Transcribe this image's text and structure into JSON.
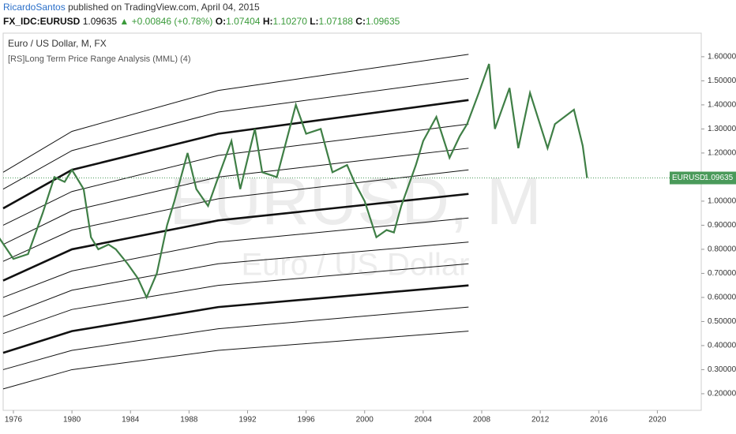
{
  "header": {
    "author": "RicardoSantos",
    "published": "published on TradingView.com, April 04, 2015",
    "symbol": "FX_IDC:EURUSD",
    "price": "1.09635",
    "change": "▲ +0.00846 (+0.78%)",
    "o_label": "O:",
    "o_value": "1.07404",
    "h_label": "H:",
    "h_value": "1.10270",
    "l_label": "L:",
    "l_value": "1.07188",
    "c_label": "C:",
    "c_value": "1.09635"
  },
  "chart_data": {
    "type": "line",
    "legend_title": "Euro / US Dollar, M, FX",
    "indicator": "[RS]Long Term Price Range Analysis (MML) (4)",
    "watermark": "EURUSD, M",
    "watermark_sub": "Euro / US Dollar",
    "color": "#3f7f46",
    "x": [
      1975.0,
      1976.0,
      1977.0,
      1978.0,
      1978.8,
      1979.5,
      1980.0,
      1980.8,
      1981.3,
      1981.8,
      1982.5,
      1983.0,
      1983.8,
      1984.5,
      1985.1,
      1985.8,
      1986.5,
      1987.0,
      1987.9,
      1988.5,
      1989.3,
      1990.0,
      1990.9,
      1991.5,
      1992.5,
      1993.0,
      1994.0,
      1995.3,
      1996.0,
      1997.0,
      1997.8,
      1998.8,
      1999.3,
      2000.0,
      2000.8,
      2001.5,
      2002.0,
      2002.5,
      2003.5,
      2004.0,
      2004.9,
      2005.8,
      2006.5,
      2007.0,
      2007.8,
      2008.5,
      2008.9,
      2009.9,
      2010.5,
      2011.3,
      2012.5,
      2013.0,
      2014.3,
      2014.9,
      2015.2
    ],
    "values": [
      0.85,
      0.76,
      0.78,
      0.95,
      1.1,
      1.08,
      1.13,
      1.05,
      0.85,
      0.8,
      0.82,
      0.8,
      0.74,
      0.68,
      0.6,
      0.7,
      0.9,
      1.0,
      1.2,
      1.05,
      0.98,
      1.1,
      1.25,
      1.05,
      1.3,
      1.12,
      1.1,
      1.4,
      1.28,
      1.3,
      1.12,
      1.15,
      1.08,
      1.0,
      0.85,
      0.88,
      0.87,
      0.98,
      1.15,
      1.25,
      1.35,
      1.18,
      1.27,
      1.32,
      1.45,
      1.57,
      1.3,
      1.47,
      1.22,
      1.45,
      1.22,
      1.32,
      1.38,
      1.23,
      1.09635
    ],
    "mml_x": [
      1975.3,
      1980,
      1990,
      2007.1
    ],
    "mml_lines": [
      {
        "bold": false,
        "values": [
          1.12,
          1.29,
          1.46,
          1.61
        ]
      },
      {
        "bold": false,
        "values": [
          1.05,
          1.21,
          1.37,
          1.51
        ]
      },
      {
        "bold": true,
        "values": [
          0.97,
          1.13,
          1.28,
          1.42
        ]
      },
      {
        "bold": false,
        "values": [
          0.9,
          1.04,
          1.19,
          1.32
        ]
      },
      {
        "bold": false,
        "values": [
          0.82,
          0.96,
          1.1,
          1.22
        ]
      },
      {
        "bold": false,
        "values": [
          0.75,
          0.88,
          1.01,
          1.13
        ]
      },
      {
        "bold": true,
        "values": [
          0.67,
          0.8,
          0.92,
          1.03
        ]
      },
      {
        "bold": false,
        "values": [
          0.6,
          0.71,
          0.83,
          0.93
        ]
      },
      {
        "bold": false,
        "values": [
          0.52,
          0.63,
          0.74,
          0.83
        ]
      },
      {
        "bold": false,
        "values": [
          0.45,
          0.55,
          0.65,
          0.74
        ]
      },
      {
        "bold": true,
        "values": [
          0.37,
          0.46,
          0.56,
          0.65
        ]
      },
      {
        "bold": false,
        "values": [
          0.3,
          0.38,
          0.47,
          0.56
        ]
      },
      {
        "bold": false,
        "values": [
          0.22,
          0.3,
          0.38,
          0.46
        ]
      }
    ],
    "xlim": [
      1975.3,
      2023.0
    ],
    "ylim": [
      0.131,
      1.698
    ],
    "xticks": [
      1976,
      1980,
      1984,
      1988,
      1992,
      1996,
      2000,
      2004,
      2008,
      2012,
      2016,
      2020
    ],
    "yticks": [
      {
        "value": 0.2,
        "label": "0.20000"
      },
      {
        "value": 0.3,
        "label": "0.30000"
      },
      {
        "value": 0.4,
        "label": "0.40000"
      },
      {
        "value": 0.5,
        "label": "0.50000"
      },
      {
        "value": 0.6,
        "label": "0.60000"
      },
      {
        "value": 0.7,
        "label": "0.70000"
      },
      {
        "value": 0.8,
        "label": "0.80000"
      },
      {
        "value": 0.9,
        "label": "0.90000"
      },
      {
        "value": 1.0,
        "label": "1.00000"
      },
      {
        "value": 1.1,
        "label": "1.10000"
      },
      {
        "value": 1.2,
        "label": "1.20000"
      },
      {
        "value": 1.3,
        "label": "1.30000"
      },
      {
        "value": 1.4,
        "label": "1.40000"
      },
      {
        "value": 1.5,
        "label": "1.50000"
      },
      {
        "value": 1.6,
        "label": "1.60000"
      }
    ],
    "last_label": "EURUSD",
    "last_value": 1.09635
  }
}
